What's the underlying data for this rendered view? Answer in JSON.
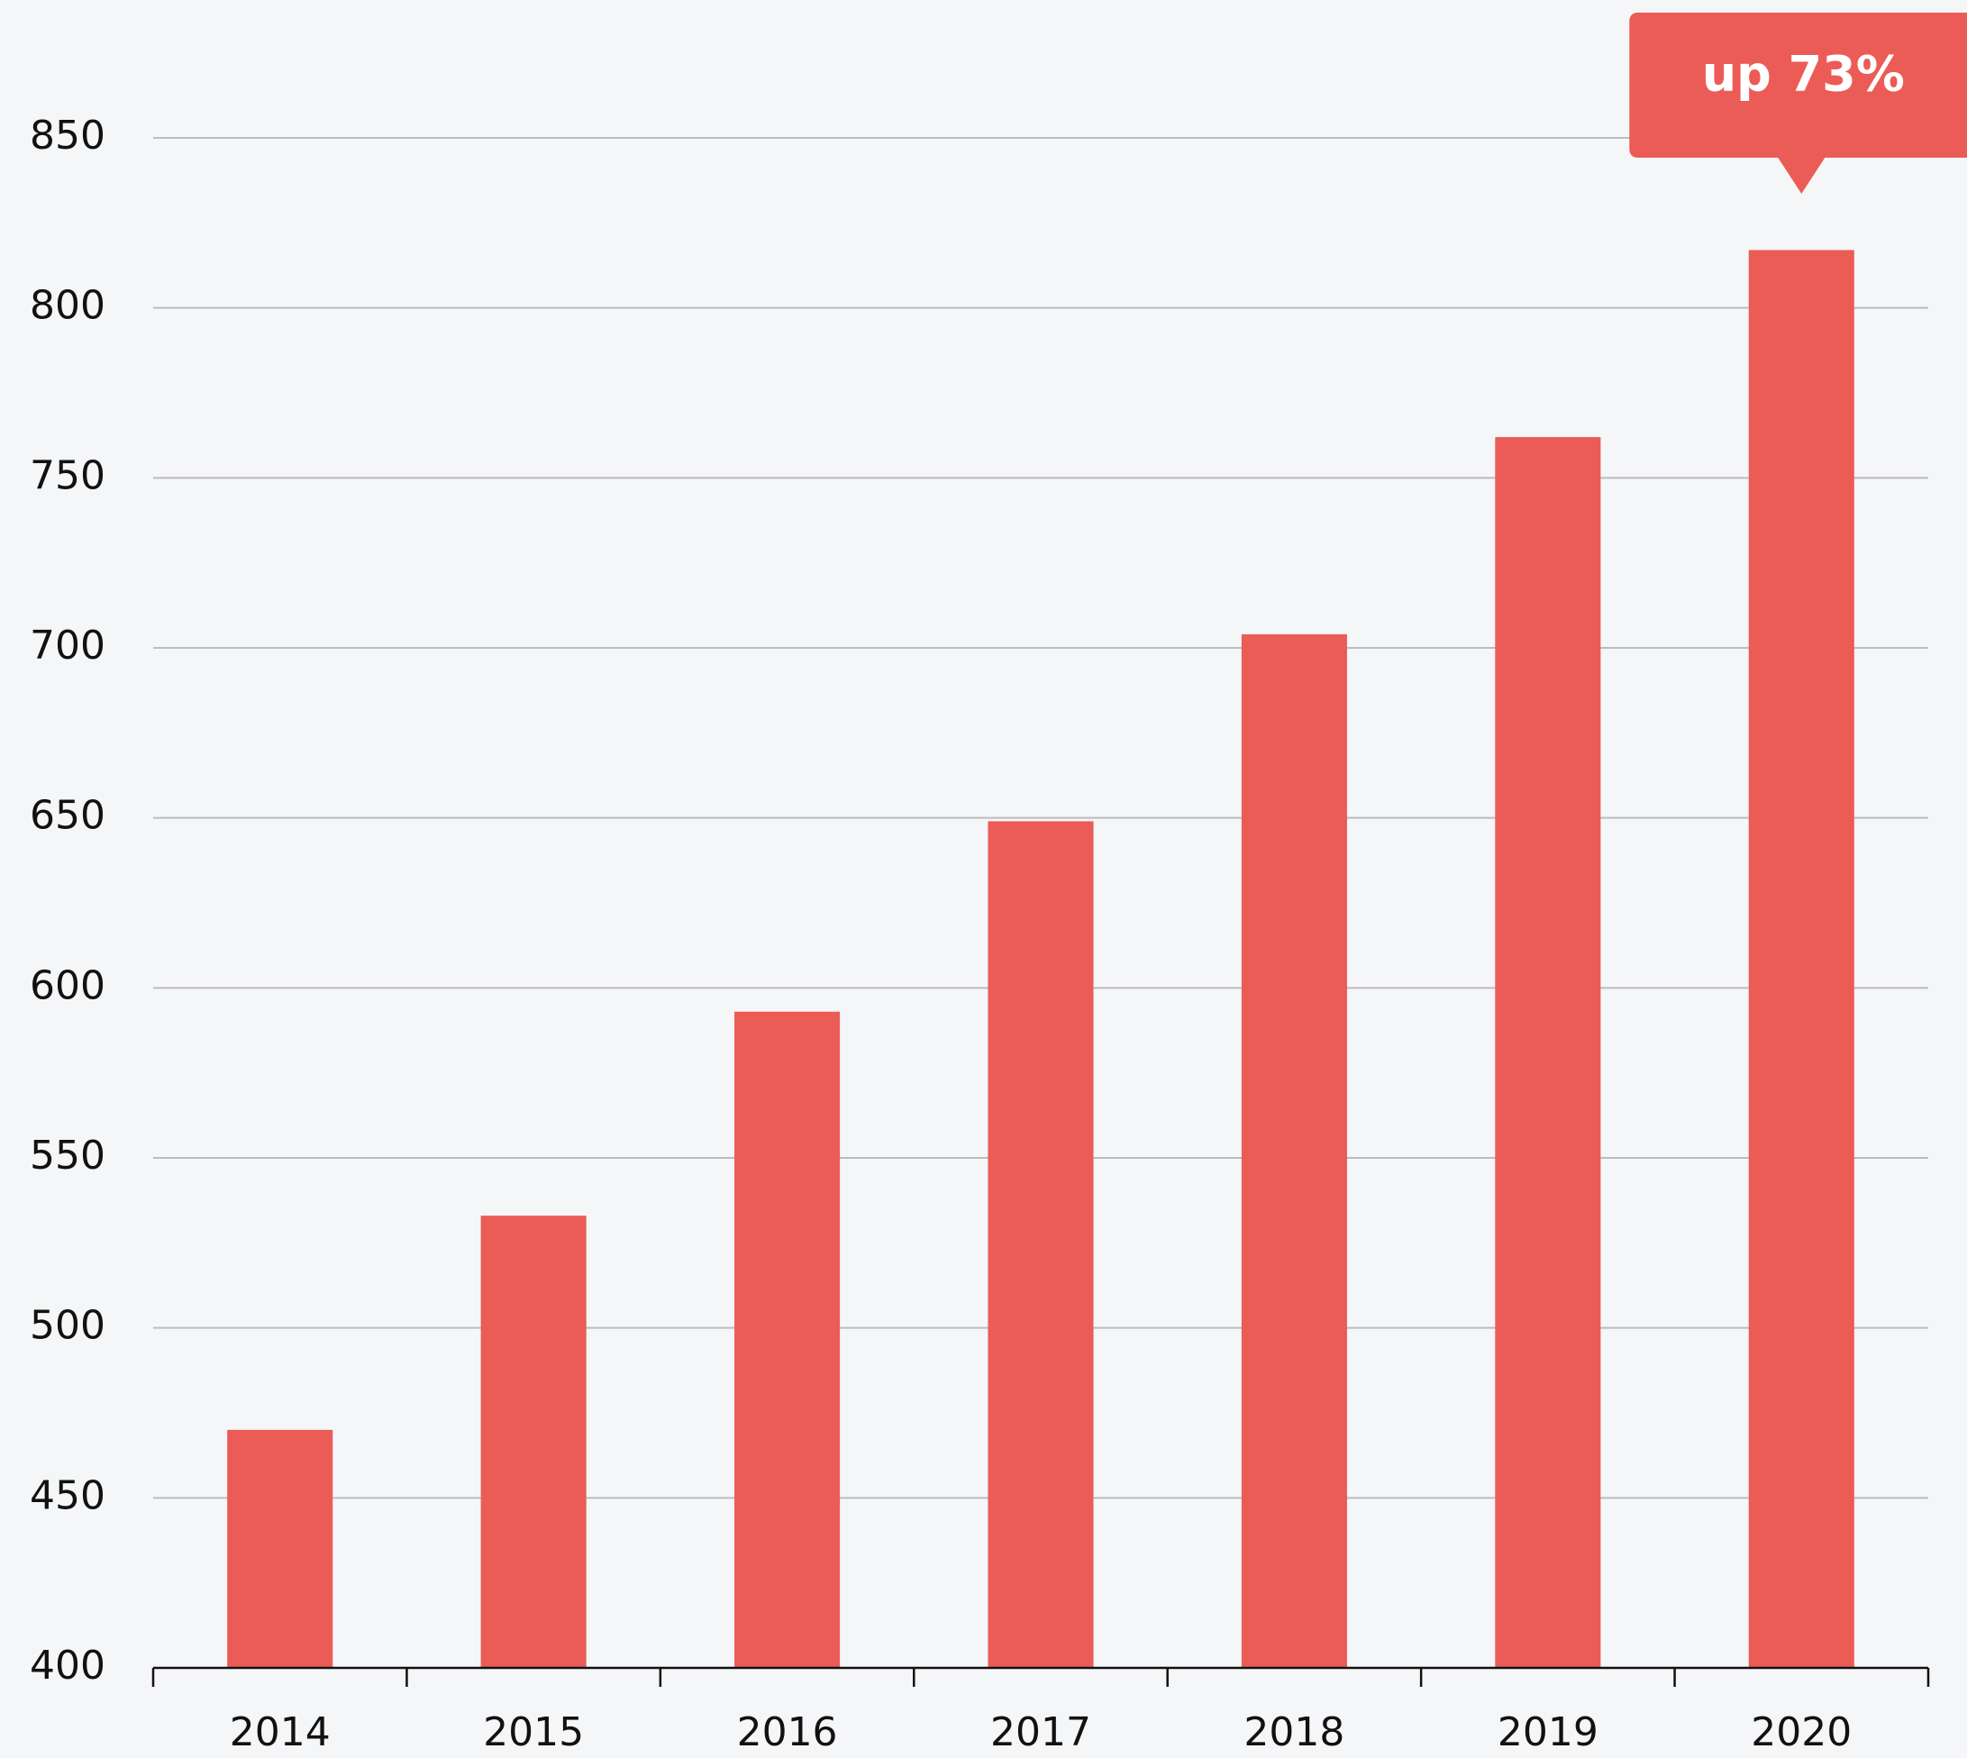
{
  "chart_data": {
    "type": "bar",
    "categories": [
      "2014",
      "2015",
      "2016",
      "2017",
      "2018",
      "2019",
      "2020"
    ],
    "values": [
      470,
      533,
      593,
      649,
      704,
      762,
      817
    ],
    "color": "#eb5c57",
    "ylim": [
      400,
      850
    ],
    "yticks": [
      400,
      450,
      500,
      550,
      600,
      650,
      700,
      750,
      800,
      850
    ],
    "grid": true,
    "annotation": "up 73%"
  }
}
